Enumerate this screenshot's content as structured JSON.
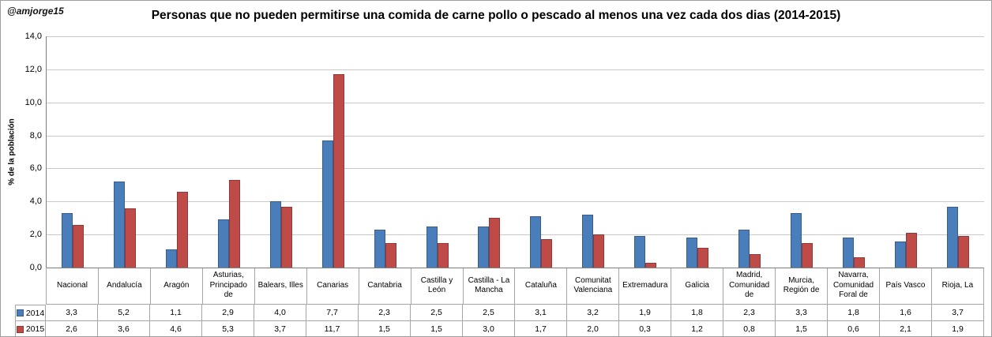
{
  "watermark": "@amjorge15",
  "chart_data": {
    "type": "bar",
    "title": "Personas que no pueden permitirse una comida de carne pollo o pescado al menos una vez cada dos dias (2014-2015)",
    "ylabel": "% de la población",
    "xlabel": "",
    "ylim": [
      0,
      14
    ],
    "ytick_step": 2,
    "grid": true,
    "legend_position": "table-left",
    "decimal_separator": ",",
    "categories": [
      "Nacional",
      "Andalucía",
      "Aragón",
      "Asturias, Principado de",
      "Balears, Illes",
      "Canarias",
      "Cantabria",
      "Castilla y León",
      "Castilla - La Mancha",
      "Cataluña",
      "Comunitat Valenciana",
      "Extremadura",
      "Galicia",
      "Madrid, Comunidad de",
      "Murcia, Región de",
      "Navarra, Comunidad Foral de",
      "País Vasco",
      "Rioja, La"
    ],
    "series": [
      {
        "name": "2014",
        "color": "#4a7ebb",
        "border_color": "#385d8a",
        "values": [
          3.3,
          5.2,
          1.1,
          2.9,
          4.0,
          7.7,
          2.3,
          2.5,
          2.5,
          3.1,
          3.2,
          1.9,
          1.8,
          2.3,
          3.3,
          1.8,
          1.6,
          3.7
        ]
      },
      {
        "name": "2015",
        "color": "#be4b48",
        "border_color": "#8f3836",
        "values": [
          2.6,
          3.6,
          4.6,
          5.3,
          3.7,
          11.7,
          1.5,
          1.5,
          3.0,
          1.7,
          2.0,
          0.3,
          1.2,
          0.8,
          1.5,
          0.6,
          2.1,
          1.9
        ]
      }
    ]
  }
}
